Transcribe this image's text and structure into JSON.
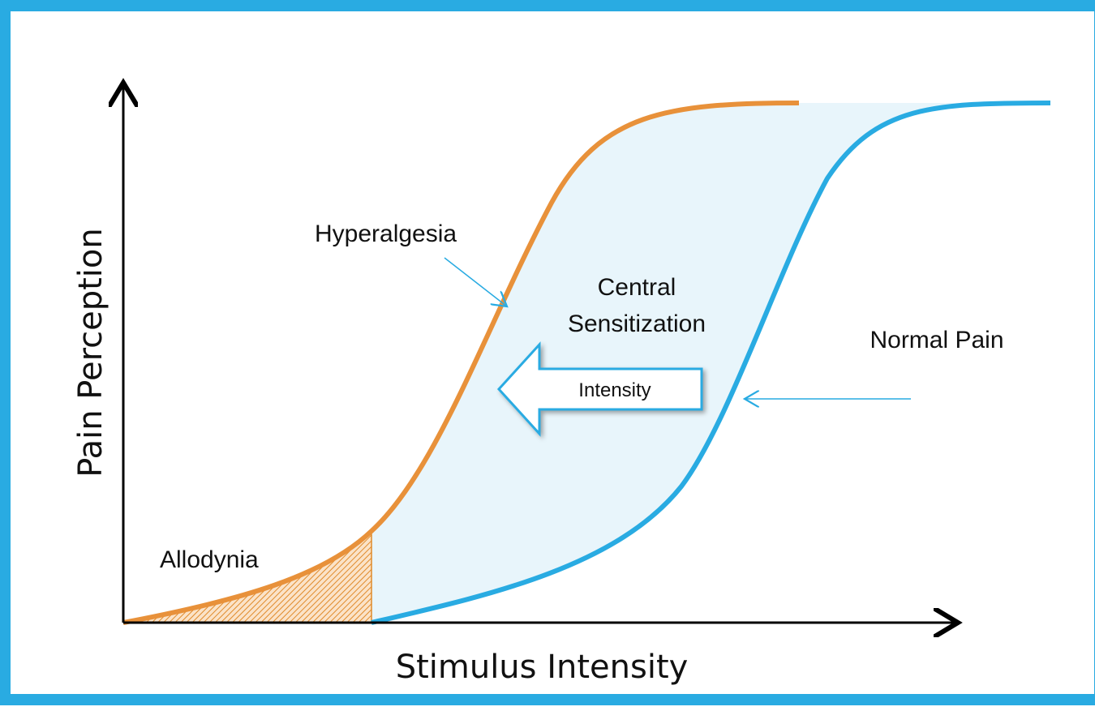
{
  "axes": {
    "x_label": "Stimulus Intensity",
    "y_label": "Pain Perception"
  },
  "labels": {
    "hyperalgesia": "Hyperalgesia",
    "central_line1": "Central",
    "central_line2": "Sensitization",
    "normal_pain": "Normal Pain",
    "intensity": "Intensity",
    "allodynia": "Allodynia"
  }
}
